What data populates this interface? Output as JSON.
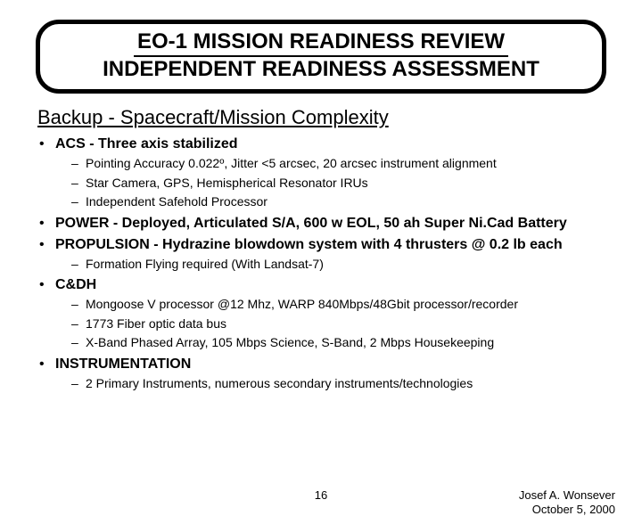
{
  "header": {
    "line1": "EO-1 MISSION READINESS REVIEW",
    "line2": "INDEPENDENT READINESS ASSESSMENT"
  },
  "section_title": "Backup - Spacecraft/Mission Complexity",
  "bullets": [
    {
      "text": "ACS - Three axis stabilized",
      "bold": true,
      "sub": [
        "Pointing Accuracy 0.022º, Jitter <5 arcsec, 20 arcsec instrument alignment",
        "Star Camera, GPS, Hemispherical Resonator IRUs",
        "Independent Safehold Processor"
      ]
    },
    {
      "text": "POWER - Deployed, Articulated S/A, 600 w EOL, 50 ah Super Ni.Cad Battery",
      "bold": true,
      "sub": []
    },
    {
      "text": "PROPULSION - Hydrazine blowdown system with 4 thrusters @ 0.2 lb each",
      "bold": true,
      "sub": [
        "Formation Flying required (With Landsat-7)"
      ]
    },
    {
      "text": "C&DH",
      "bold": true,
      "sub": [
        "Mongoose V processor @12 Mhz, WARP 840Mbps/48Gbit processor/recorder",
        "1773 Fiber optic data bus",
        "X-Band Phased Array, 105 Mbps Science,  S-Band, 2 Mbps Housekeeping"
      ]
    },
    {
      "text": "INSTRUMENTATION",
      "bold": true,
      "sub": [
        "2 Primary Instruments, numerous secondary instruments/technologies"
      ]
    }
  ],
  "footer": {
    "page": "16",
    "author": "Josef A. Wonsever",
    "date": "October 5, 2000"
  },
  "colors": {
    "background": "#ffffff",
    "text": "#000000",
    "border": "#000000"
  }
}
